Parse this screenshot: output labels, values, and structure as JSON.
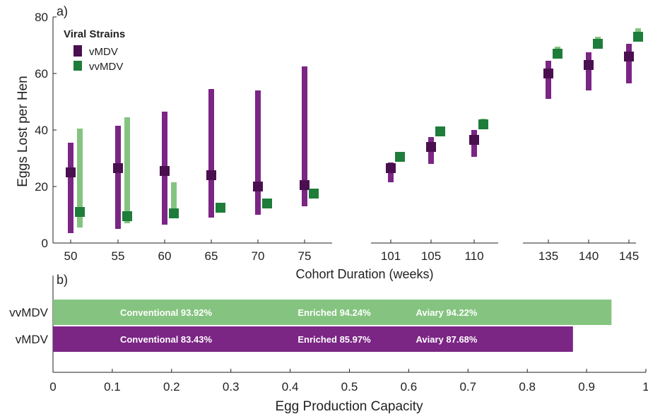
{
  "colors": {
    "vMDV": "#4a0f4f",
    "vvMDV": "#1e7d3a",
    "vMDV_bar": "#7b2585",
    "vvMDV_bar": "#85c480",
    "axis": "#222222"
  },
  "panel_a": {
    "panel_label": "a)",
    "ylabel": "Eggs Lost per Hen",
    "xlabel": "Cohort Duration (weeks)",
    "legend_title": "Viral Strains",
    "legend": [
      "vMDV",
      "vvMDV"
    ],
    "yticks": [
      "0",
      "20",
      "40",
      "60",
      "80"
    ]
  },
  "panel_b": {
    "panel_label": "b)",
    "xlabel": "Egg Production Capacity",
    "xticks": [
      "0",
      "0.1",
      "0.2",
      "0.3",
      "0.4",
      "0.5",
      "0.6",
      "0.7",
      "0.8",
      "0.9",
      "1"
    ]
  },
  "chart_data": [
    {
      "type": "scatter",
      "title": "",
      "xlabel": "Cohort Duration (weeks)",
      "ylabel": "Eggs Lost per Hen",
      "ylim": [
        0,
        80
      ],
      "legend_title": "Viral Strains",
      "legend_position": "top-left",
      "groups": [
        {
          "categories": [
            "50",
            "55",
            "60",
            "65",
            "70",
            "75"
          ]
        },
        {
          "categories": [
            "101",
            "105",
            "110"
          ]
        },
        {
          "categories": [
            "135",
            "140",
            "145"
          ]
        }
      ],
      "series": [
        {
          "name": "vMDV",
          "values": [
            25,
            26.5,
            25.5,
            24,
            20,
            20.5,
            26.5,
            34,
            36.5,
            60,
            63,
            66
          ],
          "low": [
            3.5,
            5,
            6.5,
            9,
            10,
            13,
            21.5,
            28,
            30.5,
            51,
            54,
            56.5
          ],
          "high": [
            35.5,
            41.5,
            46.5,
            54.5,
            54,
            62.5,
            28.5,
            37.5,
            40,
            64.5,
            67.5,
            70.5
          ]
        },
        {
          "name": "vvMDV",
          "values": [
            11,
            9.5,
            10.5,
            12.5,
            14,
            17.5,
            30.5,
            39.5,
            42,
            67,
            70.5,
            73
          ],
          "low": [
            5.5,
            7,
            10,
            12.5,
            14,
            17.5,
            29.5,
            38.5,
            41,
            66,
            69.5,
            72.5
          ],
          "high": [
            40.5,
            44.5,
            21.5,
            12.5,
            14,
            17.5,
            31.5,
            41,
            44,
            69.5,
            73,
            76
          ]
        }
      ]
    },
    {
      "type": "bar",
      "orientation": "horizontal",
      "title": "",
      "xlabel": "Egg Production Capacity",
      "xlim": [
        0,
        1
      ],
      "categories": [
        "vvMDV",
        "vMDV"
      ],
      "values": [
        0.942,
        0.877
      ],
      "annotations": [
        [
          "Conventional 93.92%",
          "Enriched 94.24%",
          "Aviary 94.22%"
        ],
        [
          "Conventional 83.43%",
          "Enriched 85.97%",
          "Aviary 87.68%"
        ]
      ]
    }
  ]
}
